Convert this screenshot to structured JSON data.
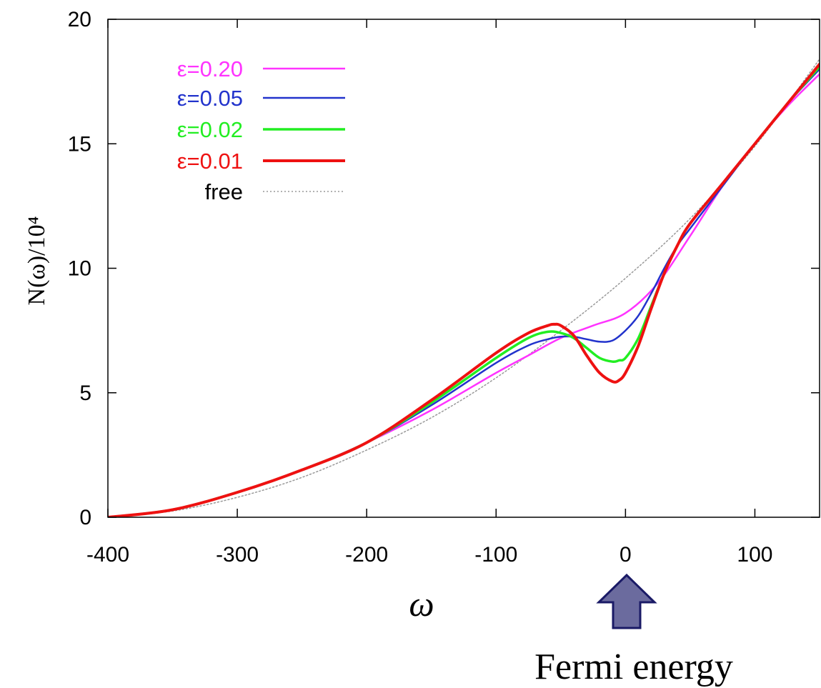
{
  "chart_data": {
    "type": "line",
    "title": "",
    "xlabel": "ω",
    "ylabel": "N(ω)/10⁴",
    "xlim": [
      -400,
      150
    ],
    "ylim": [
      0,
      20
    ],
    "xticks": [
      -400,
      -300,
      -200,
      -100,
      0,
      100
    ],
    "yticks": [
      0,
      5,
      10,
      15,
      20
    ],
    "grid": false,
    "legend_position": "top-left",
    "annotation": {
      "text": "Fermi energy",
      "points_to_x": 0,
      "arrow_color": "#6b6b9e"
    },
    "series": [
      {
        "name": "ε=0.20",
        "color": "#ff33ff",
        "style": "solid",
        "x": [
          -400,
          -350,
          -300,
          -250,
          -200,
          -150,
          -100,
          -75,
          -50,
          -25,
          0,
          25,
          50,
          75,
          100,
          125,
          150
        ],
        "y": [
          0,
          0.3,
          1.0,
          1.9,
          3.0,
          4.3,
          5.8,
          6.5,
          7.2,
          7.7,
          8.2,
          9.4,
          11.3,
          13.3,
          15.0,
          16.5,
          17.8
        ]
      },
      {
        "name": "ε=0.05",
        "color": "#2233cc",
        "style": "solid",
        "x": [
          -400,
          -350,
          -300,
          -250,
          -200,
          -150,
          -100,
          -75,
          -60,
          -50,
          -40,
          -30,
          -20,
          -10,
          0,
          10,
          20,
          30,
          40,
          50,
          75,
          100,
          125,
          150
        ],
        "y": [
          0,
          0.3,
          1.0,
          1.9,
          3.0,
          4.5,
          6.2,
          6.9,
          7.15,
          7.25,
          7.25,
          7.15,
          7.05,
          7.1,
          7.5,
          8.1,
          9.0,
          10.0,
          10.9,
          11.6,
          13.3,
          15.0,
          16.6,
          18.0
        ]
      },
      {
        "name": "ε=0.02",
        "color": "#22ee22",
        "style": "solid",
        "x": [
          -400,
          -350,
          -300,
          -250,
          -200,
          -150,
          -100,
          -75,
          -60,
          -50,
          -40,
          -30,
          -20,
          -10,
          -5,
          0,
          10,
          20,
          30,
          40,
          50,
          75,
          100,
          125,
          150
        ],
        "y": [
          0,
          0.3,
          1.0,
          1.9,
          3.0,
          4.6,
          6.4,
          7.2,
          7.45,
          7.4,
          7.2,
          6.8,
          6.4,
          6.25,
          6.3,
          6.4,
          7.2,
          8.5,
          9.8,
          10.9,
          11.8,
          13.4,
          15.0,
          16.6,
          18.1
        ]
      },
      {
        "name": "ε=0.01",
        "color": "#ee1111",
        "style": "solid",
        "x": [
          -400,
          -350,
          -300,
          -250,
          -200,
          -150,
          -100,
          -75,
          -60,
          -55,
          -50,
          -40,
          -30,
          -20,
          -10,
          -5,
          0,
          10,
          20,
          30,
          40,
          50,
          75,
          100,
          125,
          150
        ],
        "y": [
          0,
          0.3,
          1.0,
          1.9,
          3.0,
          4.7,
          6.6,
          7.4,
          7.7,
          7.75,
          7.7,
          7.3,
          6.5,
          5.8,
          5.45,
          5.5,
          5.8,
          6.9,
          8.4,
          9.8,
          10.9,
          11.8,
          13.4,
          15.0,
          16.6,
          18.2
        ]
      },
      {
        "name": "free",
        "color": "#999999",
        "style": "dotted",
        "x": [
          -400,
          -350,
          -300,
          -250,
          -200,
          -150,
          -100,
          -50,
          0,
          50,
          100,
          150
        ],
        "y": [
          0,
          0.25,
          0.8,
          1.6,
          2.7,
          4.0,
          5.6,
          7.5,
          9.6,
          12.0,
          14.9,
          18.4
        ]
      }
    ]
  }
}
